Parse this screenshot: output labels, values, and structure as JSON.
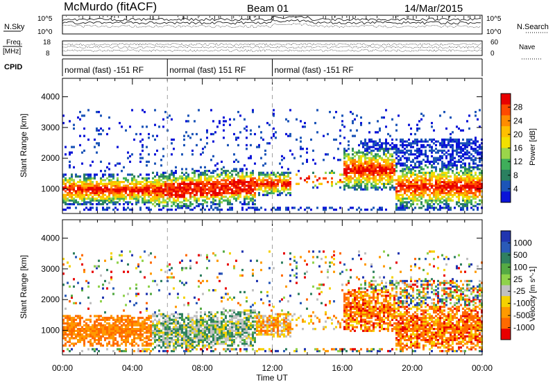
{
  "header": {
    "station": "McMurdo (fitACF)",
    "beam": "Beam 01",
    "date": "14/Mar/2015"
  },
  "status_panels": {
    "nsky_label": "N.Sky",
    "nsky_ticks": [
      "10^5",
      "10^0"
    ],
    "nsearch_label": "N.Search",
    "nsearch_ticks": [
      "10^5",
      "10^0"
    ],
    "freq_label": "Freq.",
    "freq_unit": "[MHz]",
    "freq_ticks": [
      "18",
      "8"
    ],
    "nave_label": "Nave",
    "nave_ticks": [
      "60",
      "0"
    ],
    "cpid_label": "CPID",
    "cpid_segments": [
      {
        "label": "normal (fast) -151 RF",
        "start_hour": 0,
        "end_hour": 6
      },
      {
        "label": "normal (fast) 151 RF",
        "start_hour": 6,
        "end_hour": 12
      },
      {
        "label": "normal (fast) -151 RF",
        "start_hour": 12,
        "end_hour": 24
      }
    ]
  },
  "power_scale": {
    "label": "Power [dB]",
    "ticks": [
      "28",
      "24",
      "20",
      "16",
      "12",
      "8",
      "4"
    ],
    "colors": [
      "#e80000",
      "#ff4a00",
      "#ff8c00",
      "#ffbf00",
      "#f2e000",
      "#9ad54a",
      "#3fae5a",
      "#2a8060",
      "#1c55b8",
      "#0a14d8"
    ]
  },
  "velocity_scale": {
    "label": "Velocity [m s^-1]",
    "ticks": [
      "1000",
      "500",
      "100",
      "25",
      "-25",
      "-100",
      "-500",
      "-1000"
    ],
    "colors": [
      "#2035b0",
      "#2a5ab8",
      "#2f8060",
      "#55aa44",
      "#8fd24a",
      "#c0c0c0",
      "#f5d200",
      "#ff9a00",
      "#ff6a00",
      "#e80000"
    ]
  },
  "chart_data": [
    {
      "type": "heatmap",
      "title": "Power",
      "ylabel": "Slant Range [km]",
      "xlabel": "Time UT",
      "x_ticks": [
        "00:00",
        "04:00",
        "08:00",
        "12:00",
        "16:00",
        "20:00",
        "00:00"
      ],
      "y_ticks": [
        "1000",
        "2000",
        "3000",
        "4000"
      ],
      "ylim": [
        200,
        4600
      ],
      "xlim_hours": [
        0,
        24
      ],
      "colorbar": "Power [dB]",
      "colorbar_range": [
        0,
        30
      ]
    },
    {
      "type": "heatmap",
      "title": "Velocity",
      "ylabel": "Slant Range [km]",
      "xlabel": "Time UT",
      "x_ticks": [
        "00:00",
        "04:00",
        "08:00",
        "12:00",
        "16:00",
        "20:00",
        "00:00"
      ],
      "y_ticks": [
        "1000",
        "2000",
        "3000",
        "4000"
      ],
      "ylim": [
        200,
        4600
      ],
      "xlim_hours": [
        0,
        24
      ],
      "colorbar": "Velocity [m s^-1]",
      "colorbar_range": [
        -1000,
        1000
      ]
    }
  ],
  "x_axis": {
    "label": "Time UT",
    "ticks": [
      "00:00",
      "04:00",
      "08:00",
      "12:00",
      "16:00",
      "20:00",
      "00:00"
    ]
  },
  "y_axis": {
    "label": "Slant Range [km]",
    "ticks": [
      "1000",
      "2000",
      "3000",
      "4000"
    ]
  }
}
